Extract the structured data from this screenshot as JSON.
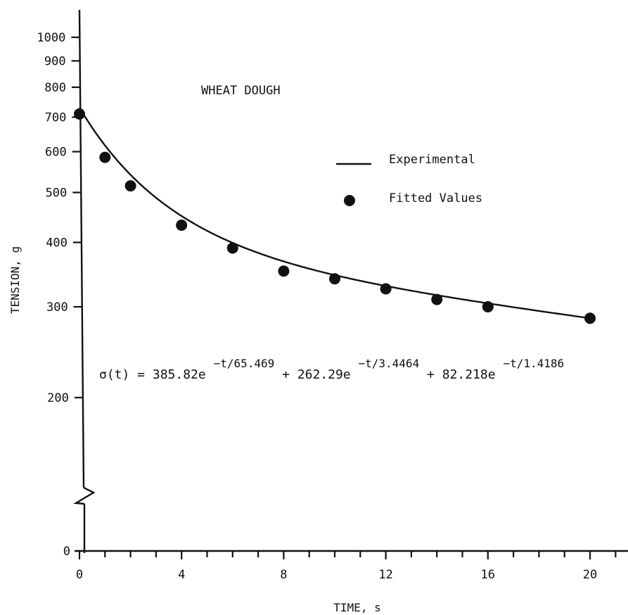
{
  "chart_data": {
    "type": "line",
    "title": "WHEAT DOUGH",
    "xlabel": "TIME, s",
    "ylabel": "TENSION, g",
    "y_scale": "log",
    "y_axis_break": true,
    "xlim": [
      0,
      22
    ],
    "ylim": [
      200,
      1000
    ],
    "x_ticks": [
      0,
      4,
      8,
      12,
      16,
      20
    ],
    "y_ticks": [
      1000,
      900,
      800,
      700,
      600,
      500,
      400,
      300,
      200,
      0
    ],
    "legend": {
      "placement": "top-right",
      "entries": [
        {
          "label": "Experimental",
          "marker": "line"
        },
        {
          "label": "Fitted Values",
          "marker": "dot"
        }
      ]
    },
    "annotation": {
      "prefix": "σ(t) = 385.82e",
      "sup1": "−t/65.469",
      "mid1": " + 262.29e",
      "sup2": "−t/3.4464",
      "mid2": " + 82.218e",
      "sup3": "−t/1.4186"
    },
    "series": [
      {
        "name": "Experimental",
        "kind": "line",
        "model": {
          "A": [
            385.82,
            262.29,
            82.218
          ],
          "tau": [
            65.469,
            3.4464,
            1.4186
          ]
        }
      },
      {
        "name": "Fitted Values",
        "kind": "scatter",
        "x": [
          0,
          1,
          2,
          4,
          6,
          8,
          10,
          12,
          14,
          16,
          20
        ],
        "y": [
          710,
          585,
          515,
          432,
          390,
          352,
          340,
          325,
          310,
          300,
          285
        ]
      }
    ],
    "zero_tick_label": "0"
  }
}
